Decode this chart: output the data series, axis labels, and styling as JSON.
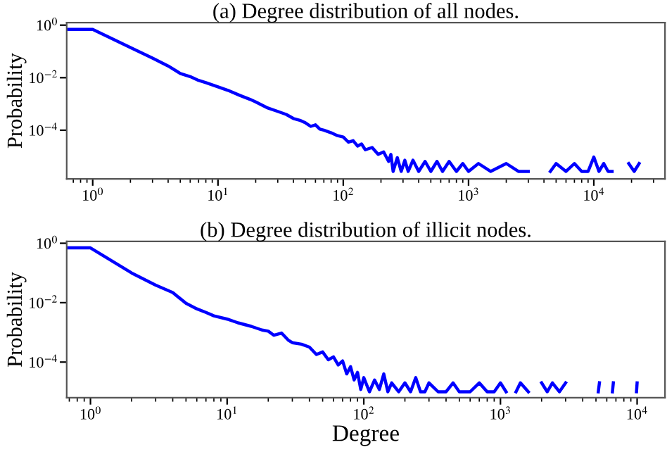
{
  "chart_data": [
    {
      "type": "line",
      "title": "(a) Degree distribution of all nodes.",
      "ylabel": "Probability",
      "log": "xy",
      "grid": false,
      "legend": false,
      "tick_labels": "xy",
      "xlim": [
        0.62,
        37000
      ],
      "ylim": [
        1.4e-06,
        1.25
      ],
      "xticks": [
        {
          "value": 1,
          "label": "10$^{0}$"
        },
        {
          "value": 10,
          "label": "10$^{1}$"
        },
        {
          "value": 100,
          "label": "10$^{2}$"
        },
        {
          "value": 1000,
          "label": "10$^{3}$"
        },
        {
          "value": 10000,
          "label": "10$^{4}$"
        }
      ],
      "yticks": [
        {
          "value": 1,
          "label": "10$^{0}$"
        },
        {
          "value": 0.01,
          "label": "10$^{−2}$"
        },
        {
          "value": 0.0001,
          "label": "10$^{−4}$"
        }
      ],
      "series": [
        {
          "color": "#0000ff",
          "x": [
            0.62,
            1,
            2,
            3,
            4,
            5,
            6,
            7,
            8,
            10,
            12,
            15,
            18,
            20,
            22,
            25,
            30,
            35,
            40,
            45,
            50,
            55,
            60,
            65,
            70,
            80,
            90,
            100,
            110,
            120,
            130,
            140,
            150,
            170,
            190,
            210,
            230,
            240,
            250,
            270,
            290,
            310,
            330,
            360,
            400,
            450,
            500,
            560,
            620,
            700,
            800,
            900,
            1000,
            1200,
            1500,
            2000,
            2500,
            3000,
            4000,
            4500,
            5000,
            6000,
            7000,
            8000,
            9000,
            10000,
            11000,
            12000,
            13000,
            14000,
            16000,
            19000,
            21000,
            23000
          ],
          "values": [
            0.69,
            0.69,
            0.14,
            0.056,
            0.028,
            0.0145,
            0.011,
            0.0079,
            0.0065,
            0.0045,
            0.0033,
            0.0021,
            0.0015,
            0.0012,
            0.00095,
            0.0007,
            0.00052,
            0.0004,
            0.00028,
            0.00024,
            0.00019,
            0.00014,
            0.00016,
            0.00011,
            0.0001,
            8e-05,
            6.2e-05,
            5.5e-05,
            3.5e-05,
            4e-05,
            2.5e-05,
            3e-05,
            1.8e-05,
            2.2e-05,
            1.2e-05,
            1.5e-05,
            6.5e-06,
            1.2e-05,
            2.7e-06,
            9e-06,
            2.7e-06,
            7.2e-06,
            2.7e-06,
            7.2e-06,
            2.7e-06,
            6.5e-06,
            2.7e-06,
            6.5e-06,
            2.7e-06,
            6.5e-06,
            2.7e-06,
            5.4e-06,
            2.7e-06,
            5.4e-06,
            2.7e-06,
            5.4e-06,
            2.7e-06,
            2.7e-06,
            null,
            2.7e-06,
            5.4e-06,
            2.7e-06,
            5.4e-06,
            2.7e-06,
            2.7e-06,
            9.5e-06,
            2.7e-06,
            5.4e-06,
            2.7e-06,
            2.7e-06,
            null,
            5.4e-06,
            2.7e-06,
            5.4e-06
          ]
        }
      ]
    },
    {
      "type": "line",
      "title": "(b) Degree distribution of illicit nodes.",
      "xlabel": "Degree",
      "ylabel": "Probability",
      "log": "xy",
      "grid": false,
      "legend": false,
      "tick_labels": "xy",
      "xlim": [
        0.67,
        16000
      ],
      "ylim": [
        6.3e-06,
        1.15
      ],
      "xticks": [
        {
          "value": 1,
          "label": "10$^{0}$"
        },
        {
          "value": 10,
          "label": "10$^{1}$"
        },
        {
          "value": 100,
          "label": "10$^{2}$"
        },
        {
          "value": 1000,
          "label": "10$^{3}$"
        },
        {
          "value": 10000,
          "label": "10$^{4}$"
        }
      ],
      "yticks": [
        {
          "value": 1,
          "label": "10$^{0}$"
        },
        {
          "value": 0.01,
          "label": "10$^{−2}$"
        },
        {
          "value": 0.0001,
          "label": "10$^{−4}$"
        }
      ],
      "series": [
        {
          "color": "#0000ff",
          "x": [
            0.67,
            1,
            2,
            3,
            4,
            5,
            6,
            7,
            8,
            10,
            12,
            15,
            18,
            20,
            22,
            25,
            28,
            30,
            35,
            40,
            45,
            50,
            55,
            60,
            65,
            70,
            75,
            80,
            85,
            90,
            95,
            100,
            110,
            120,
            130,
            140,
            150,
            160,
            180,
            200,
            220,
            240,
            260,
            280,
            300,
            350,
            400,
            450,
            500,
            600,
            700,
            800,
            900,
            1000,
            1100,
            1200,
            1300,
            1400,
            1600,
            1800,
            2000,
            2200,
            2400,
            2700,
            3000,
            3200,
            5200,
            5300,
            5400,
            6600,
            6700,
            6800,
            9900,
            10000
          ],
          "values": [
            0.7,
            0.7,
            0.1,
            0.039,
            0.022,
            0.0095,
            0.0062,
            0.0047,
            0.0036,
            0.0028,
            0.0021,
            0.0016,
            0.0012,
            0.0011,
            0.0008,
            0.00095,
            0.00055,
            0.00045,
            0.0004,
            0.00032,
            0.00018,
            0.00022,
            0.00012,
            0.00015,
            8e-05,
            0.00011,
            4e-05,
            7e-05,
            2.5e-05,
            4.5e-05,
            1.2e-05,
            3e-05,
            1e-05,
            2.5e-05,
            1.2e-05,
            4e-05,
            1e-05,
            2e-05,
            1e-05,
            2e-05,
            1e-05,
            3e-05,
            1e-05,
            1e-05,
            2e-05,
            1e-05,
            1e-05,
            2e-05,
            1e-05,
            1e-05,
            2e-05,
            1e-05,
            1e-05,
            2e-05,
            1e-05,
            null,
            1e-05,
            2e-05,
            1e-05,
            null,
            2e-05,
            1e-05,
            2e-05,
            1e-05,
            2e-05,
            null,
            1e-05,
            2e-05,
            null,
            1e-05,
            2e-05,
            null,
            1e-05,
            2e-05
          ]
        }
      ]
    }
  ]
}
